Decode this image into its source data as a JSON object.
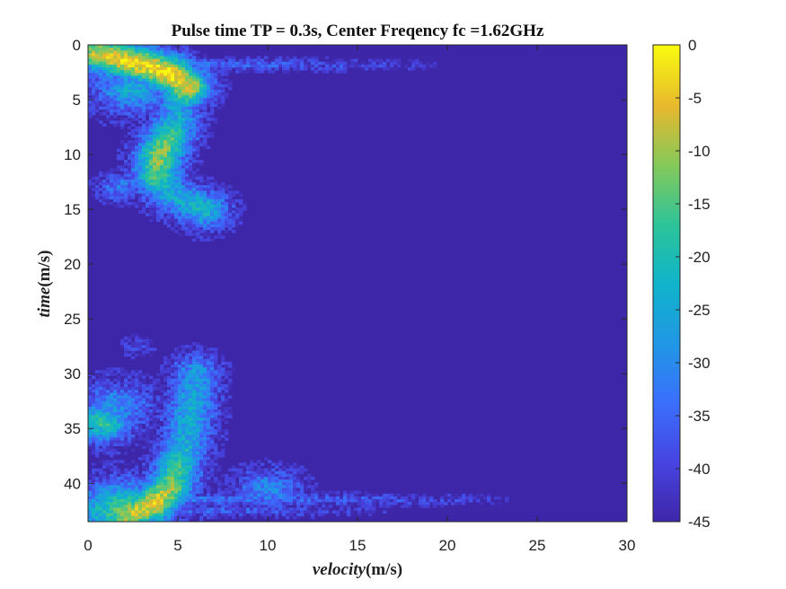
{
  "chart_data": {
    "type": "heatmap",
    "title": "Pulse time TP = 0.3s, Center Freqency fc =1.62GHz",
    "xlabel_italic": "velocity",
    "xlabel_unit": "(m/s)",
    "ylabel_italic": "time",
    "ylabel_unit": "(m/s)",
    "xlim": [
      0,
      30
    ],
    "ylim": [
      0,
      43.5
    ],
    "y_reversed": true,
    "x_ticks": [
      0,
      5,
      10,
      15,
      20,
      25,
      30
    ],
    "y_ticks": [
      0,
      5,
      10,
      15,
      20,
      25,
      30,
      35,
      40
    ],
    "colorbar": {
      "range": [
        -45,
        0
      ],
      "ticks": [
        0,
        -5,
        -10,
        -15,
        -20,
        -25,
        -30,
        -35,
        -40,
        -45
      ],
      "colormap": "parula"
    },
    "background_value": -45,
    "ridges": [
      {
        "name": "top-burst",
        "points": [
          [
            0.5,
            0.8,
            -8
          ],
          [
            1.5,
            1.2,
            -5
          ],
          [
            3.0,
            1.8,
            -3
          ],
          [
            4.5,
            2.6,
            -2
          ],
          [
            5.5,
            3.8,
            -5
          ],
          [
            5.0,
            5.5,
            -25
          ]
        ]
      },
      {
        "name": "mid-trace",
        "points": [
          [
            5.0,
            6.5,
            -25
          ],
          [
            4.5,
            8.5,
            -15
          ],
          [
            4.0,
            10.0,
            -10
          ],
          [
            3.8,
            12.0,
            -15
          ],
          [
            4.5,
            13.5,
            -25
          ],
          [
            6.5,
            15.0,
            -22
          ]
        ]
      },
      {
        "name": "lower-trace",
        "points": [
          [
            6.0,
            30.0,
            -28
          ],
          [
            5.8,
            33.0,
            -25
          ],
          [
            5.5,
            36.0,
            -25
          ],
          [
            5.0,
            38.5,
            -18
          ],
          [
            4.5,
            40.5,
            -10
          ],
          [
            3.5,
            42.0,
            -4
          ],
          [
            2.0,
            43.0,
            -10
          ]
        ]
      }
    ],
    "streaks": [
      {
        "y": 1.8,
        "x0": 0.3,
        "x1": 20,
        "peak": -32
      },
      {
        "y": 41.5,
        "x0": 3,
        "x1": 24,
        "peak": -32
      },
      {
        "y": 42.5,
        "x0": 3,
        "x1": 17,
        "peak": -34
      }
    ],
    "blobs": [
      {
        "x": 0.7,
        "y": 34.5,
        "r": 1.2,
        "peak": -18
      },
      {
        "x": 1.5,
        "y": 33.0,
        "r": 1.5,
        "peak": -30
      },
      {
        "x": 2.0,
        "y": 42.5,
        "r": 1.8,
        "peak": -15
      },
      {
        "x": 10.0,
        "y": 40.5,
        "r": 1.2,
        "peak": -30
      },
      {
        "x": 2.5,
        "y": 4.0,
        "r": 1.5,
        "peak": -25
      },
      {
        "x": 1.8,
        "y": 13.0,
        "r": 0.8,
        "peak": -32
      },
      {
        "x": 2.8,
        "y": 27.5,
        "r": 0.6,
        "peak": -40
      }
    ]
  }
}
